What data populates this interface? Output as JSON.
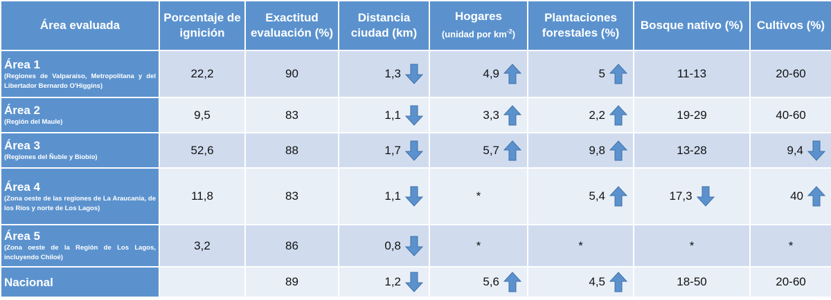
{
  "headers": [
    {
      "label": "Área evaluada",
      "sub": ""
    },
    {
      "label": "Porcentaje de ignición",
      "sub": ""
    },
    {
      "label": "Exactitud evaluación (%)",
      "sub": ""
    },
    {
      "label": "Distancia ciudad (km)",
      "sub": ""
    },
    {
      "label": "Hogares",
      "sub": "(unidad por km",
      "sub_sup": "-2",
      "sub_end": ")"
    },
    {
      "label": "Plantaciones forestales (%)",
      "sub": ""
    },
    {
      "label": "Bosque nativo (%)",
      "sub": ""
    },
    {
      "label": "Cultivos (%)",
      "sub": ""
    }
  ],
  "rows": [
    {
      "area": "Área 1",
      "desc": "(Regiones de Valparaíso, Metropolitana y del Libertador Bernardo O'Higgins)",
      "ignicion": "22,2",
      "exactitud": "90",
      "distancia": {
        "value": "1,3",
        "arrow": "down"
      },
      "hogares": {
        "value": "4,9",
        "arrow": "up"
      },
      "plantaciones": {
        "value": "5",
        "arrow": "up"
      },
      "bosque": {
        "value": "11-13",
        "arrow": ""
      },
      "cultivos": {
        "value": "20-60",
        "arrow": ""
      }
    },
    {
      "area": "Área 2",
      "desc": "(Región del Maule)",
      "ignicion": "9,5",
      "exactitud": "83",
      "distancia": {
        "value": "1,1",
        "arrow": "down"
      },
      "hogares": {
        "value": "3,3",
        "arrow": "up"
      },
      "plantaciones": {
        "value": "2,2",
        "arrow": "up"
      },
      "bosque": {
        "value": "19-29",
        "arrow": ""
      },
      "cultivos": {
        "value": "40-60",
        "arrow": ""
      }
    },
    {
      "area": "Área 3",
      "desc": "(Regiones del Ñuble y Biobío)",
      "ignicion": "52,6",
      "exactitud": "88",
      "distancia": {
        "value": "1,7",
        "arrow": "down"
      },
      "hogares": {
        "value": "5,7",
        "arrow": "up"
      },
      "plantaciones": {
        "value": "9,8",
        "arrow": "up"
      },
      "bosque": {
        "value": "13-28",
        "arrow": ""
      },
      "cultivos": {
        "value": "9,4",
        "arrow": "down"
      }
    },
    {
      "area": "Área 4",
      "desc": "(Zona oeste de las regiones de La Araucanía, de los Ríos y norte de Los Lagos)",
      "ignicion": "11,8",
      "exactitud": "83",
      "distancia": {
        "value": "1,1",
        "arrow": "down"
      },
      "hogares": {
        "value": "*",
        "arrow": ""
      },
      "plantaciones": {
        "value": "5,4",
        "arrow": "up"
      },
      "bosque": {
        "value": "17,3",
        "arrow": "down"
      },
      "cultivos": {
        "value": "40",
        "arrow": "up"
      }
    },
    {
      "area": "Área 5",
      "desc": "(Zona oeste de la Región de Los Lagos, incluyendo Chiloé)",
      "ignicion": "3,2",
      "exactitud": "86",
      "distancia": {
        "value": "0,8",
        "arrow": "down"
      },
      "hogares": {
        "value": "*",
        "arrow": ""
      },
      "plantaciones": {
        "value": "*",
        "arrow": ""
      },
      "bosque": {
        "value": "*",
        "arrow": ""
      },
      "cultivos": {
        "value": "*",
        "arrow": ""
      }
    },
    {
      "area": "Nacional",
      "desc": "",
      "ignicion": "",
      "exactitud": "89",
      "distancia": {
        "value": "1,2",
        "arrow": "down"
      },
      "hogares": {
        "value": "5,6",
        "arrow": "up"
      },
      "plantaciones": {
        "value": "4,5",
        "arrow": "up"
      },
      "bosque": {
        "value": "18-50",
        "arrow": ""
      },
      "cultivos": {
        "value": "20-60",
        "arrow": ""
      }
    }
  ],
  "colors": {
    "header_bg": "#5b92ce",
    "row_bg": "#d0dcee",
    "row_alt_bg": "#e9eff7",
    "arrow_fill": "#5b92ce",
    "arrow_stroke": "#3f6fa6"
  },
  "icons": {
    "up": "arrow-up-icon",
    "down": "arrow-down-icon"
  }
}
